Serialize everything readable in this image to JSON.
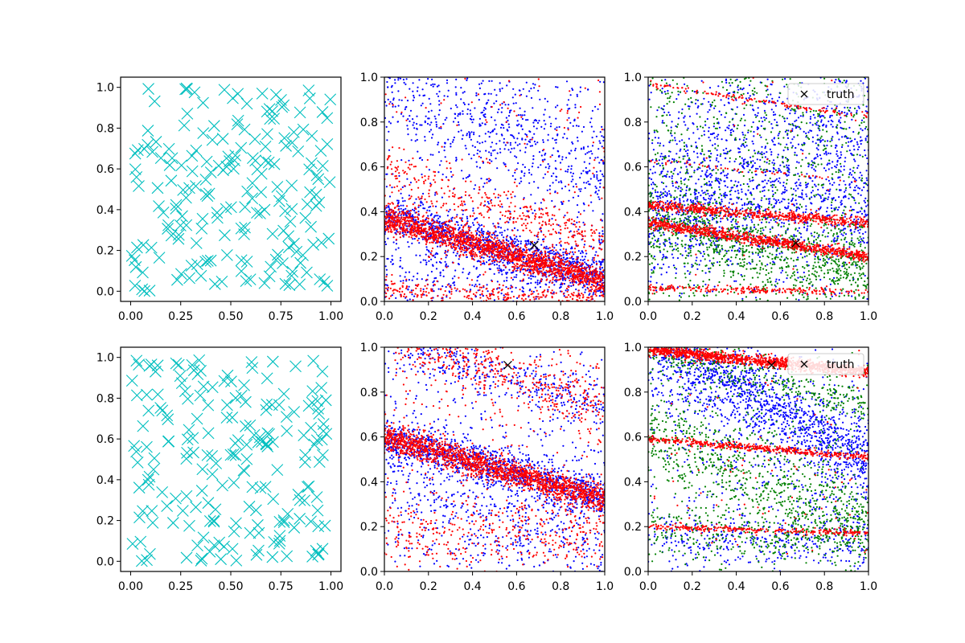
{
  "chart_data": [
    {
      "panel": "row1-col1",
      "type": "scatter",
      "title": "",
      "xlabel": "",
      "ylabel": "",
      "xlim": [
        -0.05,
        1.05
      ],
      "ylim": [
        -0.05,
        1.05
      ],
      "xticks": [
        "0.00",
        "0.25",
        "0.50",
        "0.75",
        "1.00"
      ],
      "yticks": [
        "0.0",
        "0.2",
        "0.4",
        "0.6",
        "0.8",
        "1.0"
      ],
      "grid": false,
      "series": [
        {
          "marker": "x",
          "color": "#00bfbf",
          "points": "~200 large cyan x markers uniformly scattered over [0,1]x[0,1]",
          "seed": 11,
          "count": 200
        }
      ]
    },
    {
      "panel": "row1-col2",
      "type": "scatter",
      "title": "",
      "xlabel": "",
      "ylabel": "",
      "xlim": [
        0,
        1
      ],
      "ylim": [
        0,
        1
      ],
      "xticks": [
        "0.0",
        "0.2",
        "0.4",
        "0.6",
        "0.8",
        "1.0"
      ],
      "yticks": [
        "0.0",
        "0.2",
        "0.4",
        "0.6",
        "0.8",
        "1.0"
      ],
      "grid": false,
      "marker_truth": {
        "x": 0.68,
        "y": 0.25,
        "color": "#000000"
      },
      "series": [
        {
          "color": "#0000ff",
          "bands": [
            {
              "y0": 0.38,
              "slope": -0.27,
              "spread": 0.05,
              "count": 1100
            },
            {
              "y0": 0.12,
              "slope": -0.02,
              "spread": 0.07,
              "count": 250
            },
            {
              "y0": 1.0,
              "slope": -0.45,
              "spread": 0.15,
              "count": 550
            }
          ],
          "uniform": 500
        },
        {
          "color": "#ff0000",
          "bands": [
            {
              "y0": 0.37,
              "slope": -0.28,
              "spread": 0.03,
              "count": 1800
            },
            {
              "y0": 0.05,
              "slope": -0.04,
              "spread": 0.02,
              "count": 250
            },
            {
              "y0": 0.58,
              "slope": -0.32,
              "spread": 0.05,
              "count": 350
            }
          ],
          "uniform": 200
        }
      ]
    },
    {
      "panel": "row1-col3",
      "type": "scatter",
      "title": "",
      "xlabel": "",
      "ylabel": "",
      "xlim": [
        0,
        1
      ],
      "ylim": [
        0,
        1
      ],
      "xticks": [
        "0.0",
        "0.2",
        "0.4",
        "0.6",
        "0.8",
        "1.0"
      ],
      "yticks": [
        "0.0",
        "0.2",
        "0.4",
        "0.6",
        "0.8",
        "1.0"
      ],
      "grid": false,
      "legend": {
        "placement": "top-right",
        "label": "truth"
      },
      "marker_truth": {
        "x": 0.67,
        "y": 0.26,
        "color": "#000000"
      },
      "series": [
        {
          "color": "#0000ff",
          "bands": [
            {
              "y0": 0.4,
              "slope": 0.0,
              "spread": 0.12,
              "count": 600
            },
            {
              "y0": 0.45,
              "slope": 0.35,
              "spread": 0.22,
              "count": 900
            }
          ],
          "uniform": 400
        },
        {
          "color": "#008000",
          "bands": [
            {
              "y0": 0.35,
              "slope": -0.2,
              "spread": 0.08,
              "count": 700
            }
          ],
          "uniform": 900
        },
        {
          "color": "#ff0000",
          "bands": [
            {
              "y0": 0.35,
              "slope": -0.15,
              "spread": 0.012,
              "count": 900
            },
            {
              "y0": 0.43,
              "slope": -0.08,
              "spread": 0.012,
              "count": 650
            },
            {
              "y0": 0.06,
              "slope": -0.02,
              "spread": 0.008,
              "count": 220
            },
            {
              "y0": 0.97,
              "slope": -0.15,
              "spread": 0.006,
              "count": 130
            },
            {
              "y0": 0.63,
              "slope": -0.1,
              "spread": 0.005,
              "count": 50
            }
          ],
          "uniform": 30
        }
      ]
    },
    {
      "panel": "row2-col1",
      "type": "scatter",
      "title": "",
      "xlabel": "",
      "ylabel": "",
      "xlim": [
        -0.05,
        1.05
      ],
      "ylim": [
        -0.05,
        1.05
      ],
      "xticks": [
        "0.00",
        "0.25",
        "0.50",
        "0.75",
        "1.00"
      ],
      "yticks": [
        "0.0",
        "0.2",
        "0.4",
        "0.6",
        "0.8",
        "1.0"
      ],
      "grid": false,
      "series": [
        {
          "marker": "x",
          "color": "#00bfbf",
          "points": "~200 large cyan x markers uniformly scattered over [0,1]x[0,1]",
          "seed": 29,
          "count": 200
        }
      ]
    },
    {
      "panel": "row2-col2",
      "type": "scatter",
      "title": "",
      "xlabel": "",
      "ylabel": "",
      "xlim": [
        0,
        1
      ],
      "ylim": [
        0,
        1
      ],
      "xticks": [
        "0.0",
        "0.2",
        "0.4",
        "0.6",
        "0.8",
        "1.0"
      ],
      "yticks": [
        "0.0",
        "0.2",
        "0.4",
        "0.6",
        "0.8",
        "1.0"
      ],
      "grid": false,
      "marker_truth": {
        "x": 0.56,
        "y": 0.92,
        "color": "#000000"
      },
      "series": [
        {
          "color": "#0000ff",
          "bands": [
            {
              "y0": 0.6,
              "slope": -0.27,
              "spread": 0.045,
              "count": 1100
            },
            {
              "y0": 1.03,
              "slope": -0.3,
              "spread": 0.06,
              "count": 300
            },
            {
              "y0": 0.4,
              "slope": -0.3,
              "spread": 0.12,
              "count": 400
            }
          ],
          "uniform": 450
        },
        {
          "color": "#ff0000",
          "bands": [
            {
              "y0": 0.6,
              "slope": -0.28,
              "spread": 0.03,
              "count": 1700
            },
            {
              "y0": 1.08,
              "slope": -0.37,
              "spread": 0.06,
              "count": 450
            },
            {
              "y0": 0.2,
              "slope": -0.05,
              "spread": 0.08,
              "count": 300
            }
          ],
          "uniform": 300
        }
      ]
    },
    {
      "panel": "row2-col3",
      "type": "scatter",
      "title": "",
      "xlabel": "",
      "ylabel": "",
      "xlim": [
        0,
        1
      ],
      "ylim": [
        0,
        1
      ],
      "xticks": [
        "0.0",
        "0.2",
        "0.4",
        "0.6",
        "0.8",
        "1.0"
      ],
      "yticks": [
        "0.0",
        "0.2",
        "0.4",
        "0.6",
        "0.8",
        "1.0"
      ],
      "grid": false,
      "legend": {
        "placement": "top-right",
        "label": "truth"
      },
      "marker_truth": {
        "x": 0.56,
        "y": 0.92,
        "color": "#000000"
      },
      "series": [
        {
          "color": "#0000ff",
          "bands": [
            {
              "y0": 1.05,
              "slope": -0.55,
              "spread": 0.08,
              "count": 1100
            },
            {
              "y0": 0.95,
              "slope": -0.6,
              "spread": 0.18,
              "count": 500
            },
            {
              "y0": 0.17,
              "slope": -0.05,
              "spread": 0.06,
              "count": 300
            }
          ],
          "uniform": 300
        },
        {
          "color": "#008000",
          "bands": [
            {
              "y0": 0.62,
              "slope": -0.4,
              "spread": 0.1,
              "count": 700
            },
            {
              "y0": 0.99,
              "slope": -0.25,
              "spread": 0.04,
              "count": 300
            },
            {
              "y0": 0.18,
              "slope": -0.05,
              "spread": 0.05,
              "count": 250
            }
          ],
          "uniform": 350
        },
        {
          "color": "#ff0000",
          "bands": [
            {
              "y0": 0.99,
              "slope": -0.1,
              "spread": 0.012,
              "count": 1200
            },
            {
              "y0": 0.59,
              "slope": -0.08,
              "spread": 0.008,
              "count": 450
            },
            {
              "y0": 0.2,
              "slope": -0.03,
              "spread": 0.006,
              "count": 250
            },
            {
              "y0": 0.35,
              "slope": 0.0,
              "spread": 0.2,
              "count": 60
            }
          ],
          "uniform": 40
        }
      ]
    }
  ]
}
